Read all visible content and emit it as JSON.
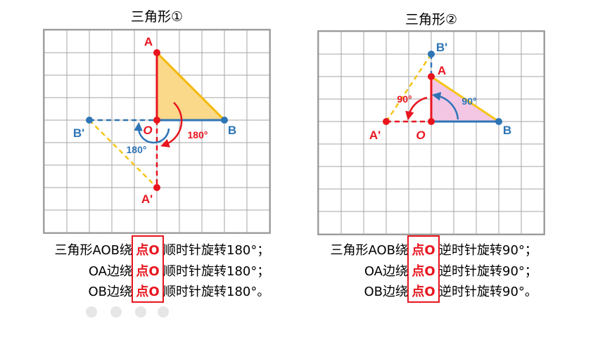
{
  "panels": [
    {
      "title": "三角形①",
      "labels": {
        "A": "A",
        "B": "B",
        "A_prime": "A'",
        "B_prime": "B'",
        "O": "O",
        "angle_red": "180°",
        "angle_blue": "180°"
      },
      "statements": [
        {
          "before": "三角形AOB绕",
          "point": "点O",
          "after": "顺时针旋转180°；"
        },
        {
          "before": "OA边绕",
          "point": "点O",
          "after": "顺时针旋转180°；"
        },
        {
          "before": "OB边绕",
          "point": "点O",
          "after": "顺时针旋转180°。"
        }
      ]
    },
    {
      "title": "三角形②",
      "labels": {
        "A": "A",
        "B": "B",
        "A_prime": "A'",
        "B_prime": "B'",
        "O": "O",
        "angle_red": "90°",
        "angle_blue": "90°"
      },
      "statements": [
        {
          "before": "三角形AOB绕",
          "point": "点O",
          "after": "逆时针旋转90°；"
        },
        {
          "before": "OA边绕",
          "point": "点O",
          "after": "逆时针旋转90°；"
        },
        {
          "before": "OB边绕",
          "point": "点O",
          "after": "逆时针旋转90°。"
        }
      ]
    }
  ]
}
